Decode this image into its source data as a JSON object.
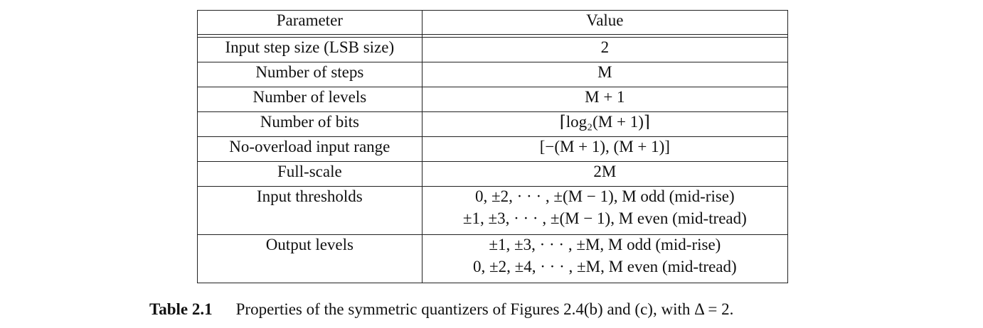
{
  "table": {
    "headers": [
      "Parameter",
      "Value"
    ],
    "rows": [
      {
        "param": "Input step size (LSB size)",
        "value": "2"
      },
      {
        "param": "Number of steps",
        "value": "M"
      },
      {
        "param": "Number of levels",
        "value": "M + 1"
      },
      {
        "param": "Number of bits",
        "value": "⌈log₂(M + 1)⌉"
      },
      {
        "param": "No-overload input range",
        "value": "[−(M + 1), (M + 1)]"
      },
      {
        "param": "Full-scale",
        "value": "2M"
      },
      {
        "param": "Input thresholds",
        "value_lines": [
          "0, ±2, · · · , ±(M − 1),   M odd (mid-rise)",
          "±1, ±3, · · · , ±(M − 1),   M even (mid-tread)"
        ]
      },
      {
        "param": "Output levels",
        "value_lines": [
          "±1, ±3, · · · , ±M,   M odd (mid-rise)",
          "0, ±2, ±4, · · · , ±M,   M even (mid-tread)"
        ]
      }
    ]
  },
  "caption": {
    "label": "Table 2.1",
    "text": "Properties of the symmetric quantizers of Figures 2.4(b) and (c), with Δ = 2."
  }
}
